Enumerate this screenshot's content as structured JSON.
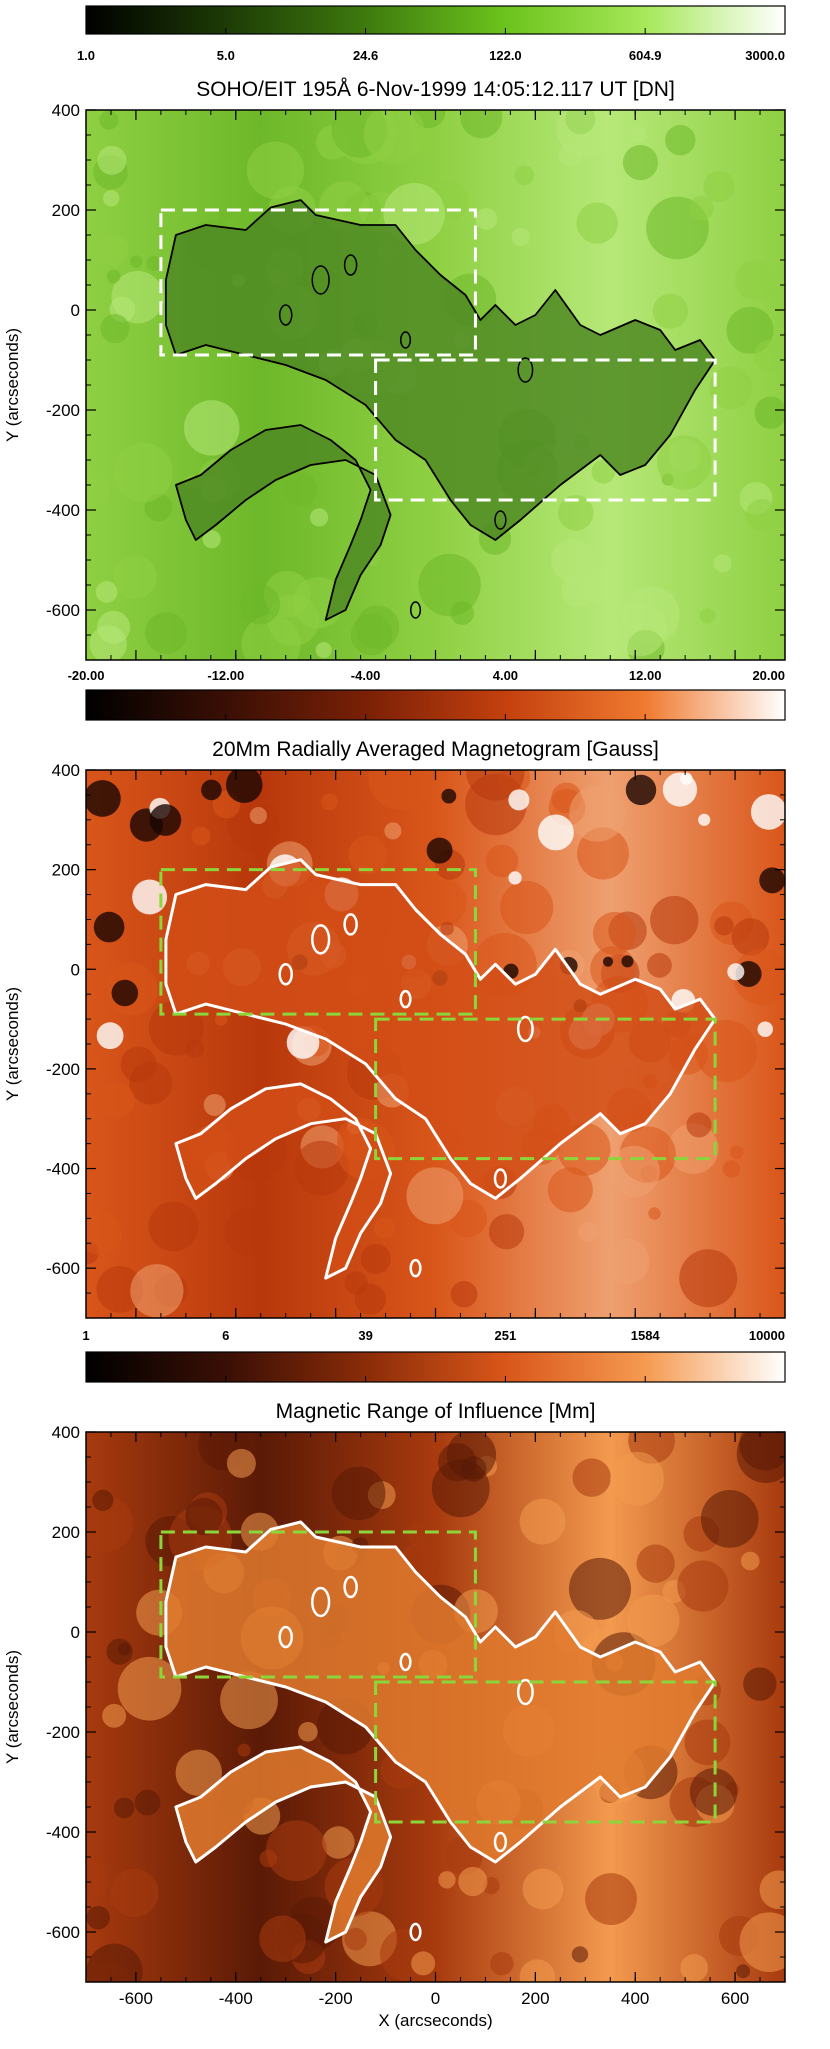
{
  "figure": {
    "panels": [
      {
        "title": "SOHO/EIT 195Å  6-Nov-1999 14:05:12.117 UT [DN]",
        "colorbar_ticks": [
          "1.0",
          "5.0",
          "24.6",
          "122.0",
          "604.9",
          "3000.0"
        ],
        "colorbar_colors": [
          "#000000",
          "#1d3b06",
          "#3e7a0e",
          "#6cc31c",
          "#a6e85a",
          "#ffffff"
        ],
        "background": [
          "#6db82a",
          "#8fd043",
          "#b6e878"
        ],
        "region_fill": "#4f8a23",
        "contour_color": "#000000",
        "box_color": "#ffffff",
        "yticks": [
          "400",
          "200",
          "0",
          "-200",
          "-400",
          "-600"
        ],
        "ylabel": "Y (arcseconds)"
      },
      {
        "title": "20Mm  Radially  Averaged  Magnetogram  [Gauss]",
        "colorbar_ticks": [
          "-20.00",
          "-12.00",
          "-4.00",
          "4.00",
          "12.00",
          "20.00"
        ],
        "colorbar_colors": [
          "#000000",
          "#3a0f05",
          "#7a2006",
          "#c4400e",
          "#f07a30",
          "#ffffff"
        ],
        "background": [
          "#b8380c",
          "#d9561a",
          "#efa070"
        ],
        "region_fill": "#d24e16",
        "contour_color": "#ffffff",
        "box_color": "#8bd63a",
        "yticks": [
          "400",
          "200",
          "0",
          "-200",
          "-400",
          "-600"
        ],
        "ylabel": "Y (arcseconds)"
      },
      {
        "title": "Magnetic  Range  of  Influence  [Mm]",
        "colorbar_ticks": [
          "1",
          "6",
          "39",
          "251",
          "1584",
          "10000"
        ],
        "colorbar_colors": [
          "#000000",
          "#3a0f05",
          "#8a2c08",
          "#d9561a",
          "#f59a50",
          "#ffffff"
        ],
        "background": [
          "#5a1a06",
          "#a83a0e",
          "#f39a4f"
        ],
        "region_fill": "#e07a2e",
        "contour_color": "#ffffff",
        "box_color": "#8bd63a",
        "yticks": [
          "400",
          "200",
          "0",
          "-200",
          "-400",
          "-600"
        ],
        "ylabel": "Y (arcseconds)"
      }
    ],
    "xticks": [
      "-600",
      "-400",
      "-200",
      "0",
      "200",
      "400",
      "600"
    ],
    "xlabel": "X (arcseconds)"
  },
  "chart_data": [
    {
      "type": "heatmap",
      "title": "SOHO/EIT 195Å  6-Nov-1999 14:05:12.117 UT [DN]",
      "colorbar": {
        "values": [
          1.0,
          5.0,
          24.6,
          122.0,
          604.9,
          3000.0
        ],
        "scale": "log"
      },
      "ylabel": "Y (arcseconds)",
      "xlim": [
        -700,
        700
      ],
      "ylim": [
        -700,
        400
      ],
      "boxes": [
        {
          "x": [
            -550,
            80
          ],
          "y": [
            -90,
            200
          ]
        },
        {
          "x": [
            -120,
            560
          ],
          "y": [
            -380,
            -100
          ]
        }
      ]
    },
    {
      "type": "heatmap",
      "title": "20Mm  Radially  Averaged  Magnetogram  [Gauss]",
      "colorbar": {
        "values": [
          -20.0,
          -12.0,
          -4.0,
          4.0,
          12.0,
          20.0
        ],
        "scale": "linear"
      },
      "ylabel": "Y (arcseconds)",
      "xlim": [
        -700,
        700
      ],
      "ylim": [
        -700,
        400
      ],
      "boxes": [
        {
          "x": [
            -550,
            80
          ],
          "y": [
            -90,
            200
          ]
        },
        {
          "x": [
            -120,
            560
          ],
          "y": [
            -380,
            -100
          ]
        }
      ]
    },
    {
      "type": "heatmap",
      "title": "Magnetic  Range  of  Influence  [Mm]",
      "colorbar": {
        "values": [
          1,
          6,
          39,
          251,
          1584,
          10000
        ],
        "scale": "log"
      },
      "ylabel": "Y (arcseconds)",
      "xlabel": "X (arcseconds)",
      "xlim": [
        -700,
        700
      ],
      "ylim": [
        -700,
        400
      ],
      "boxes": [
        {
          "x": [
            -550,
            80
          ],
          "y": [
            -90,
            200
          ]
        },
        {
          "x": [
            -120,
            560
          ],
          "y": [
            -380,
            -100
          ]
        }
      ]
    }
  ]
}
